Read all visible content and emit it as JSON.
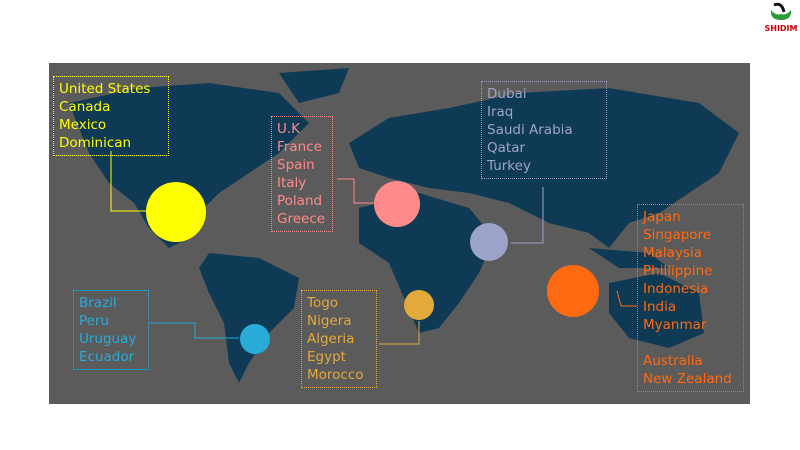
{
  "logo": {
    "text": "SHIDIM"
  },
  "regions": [
    {
      "id": "north-america",
      "color": "#ffff00",
      "countries": [
        "United States",
        "Canada",
        "Mexico",
        "Dominican"
      ]
    },
    {
      "id": "europe",
      "color": "#ff8a8a",
      "countries": [
        "U.K",
        "France",
        "Spain",
        "Italy",
        "Poland",
        "Greece"
      ]
    },
    {
      "id": "middle-east",
      "color": "#9ea3c9",
      "countries": [
        "Dubai",
        "Iraq",
        "Saudi Arabia",
        "Qatar",
        "Turkey"
      ]
    },
    {
      "id": "asia-pacific",
      "color": "#ff6a10",
      "countries": [
        "Japan",
        "Singapore",
        "Malaysia",
        "Phillippine",
        "Indonesia",
        "India",
        "Myanmar",
        "",
        "Australia",
        "New Zealand"
      ]
    },
    {
      "id": "south-america",
      "color": "#29abd8",
      "countries": [
        "Brazil",
        "Peru",
        "Uruguay",
        "Ecuador"
      ]
    },
    {
      "id": "africa",
      "color": "#e3a93a",
      "countries": [
        "Togo",
        "Nigera",
        "Algeria",
        "Egypt",
        "Morocco"
      ]
    }
  ],
  "colors": {
    "map_background": "#5b5b5c",
    "land": "#0f3a55"
  }
}
